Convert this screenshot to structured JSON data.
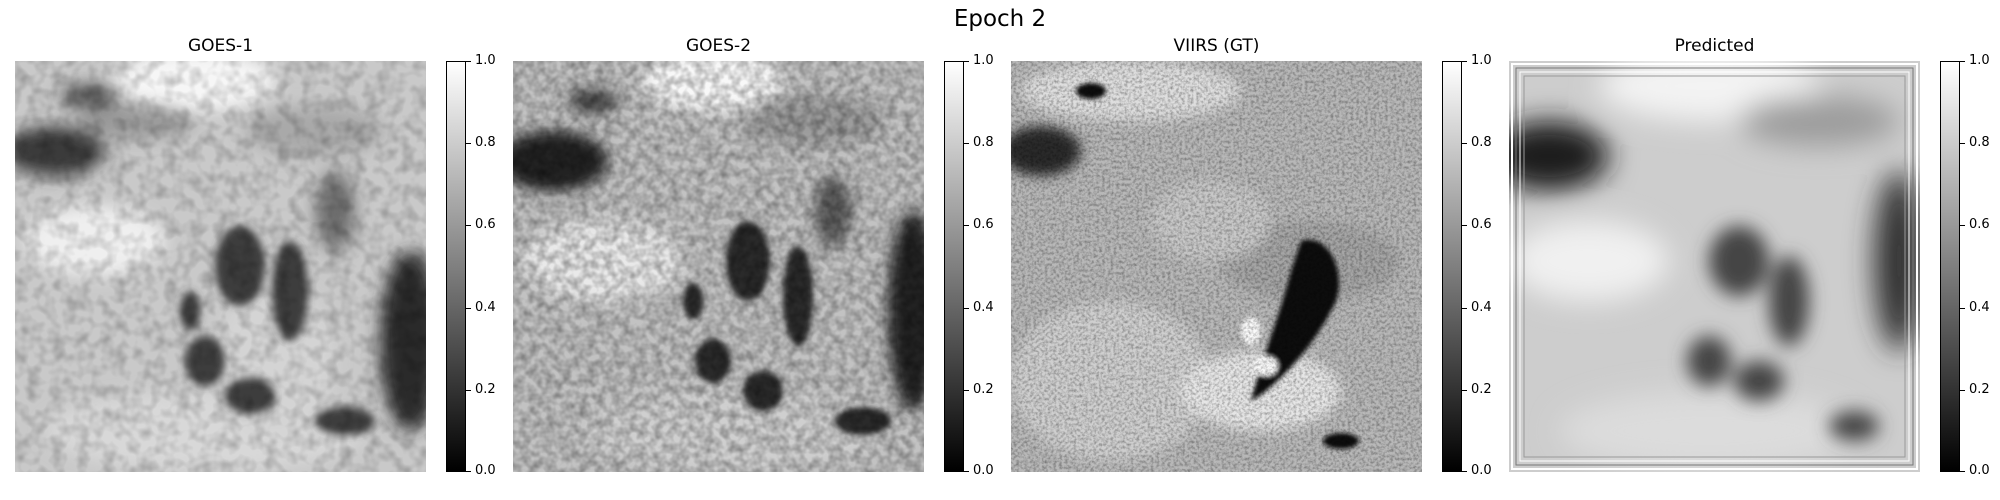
{
  "title": "Epoch 2",
  "panels": [
    {
      "title": "GOES-1"
    },
    {
      "title": "GOES-2"
    },
    {
      "title": "VIIRS (GT)"
    },
    {
      "title": "Predicted"
    }
  ],
  "colorbar": {
    "ticks": [
      "1.0",
      "0.8",
      "0.6",
      "0.4",
      "0.2",
      "0.0"
    ],
    "colormap": "grayscale",
    "range": [
      0.0,
      1.0
    ]
  }
}
